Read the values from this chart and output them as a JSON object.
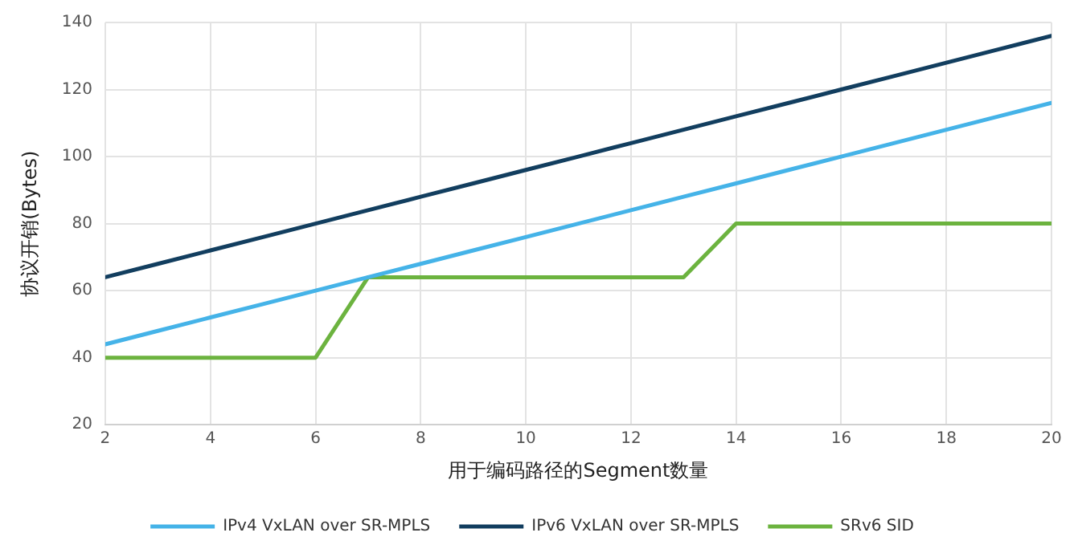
{
  "chart_data": {
    "type": "line",
    "xlabel": "用于编码路径的Segment数量",
    "ylabel": "协议开销(Bytes)",
    "x": [
      2,
      3,
      4,
      5,
      6,
      7,
      8,
      9,
      10,
      11,
      12,
      13,
      14,
      15,
      16,
      17,
      18,
      19,
      20
    ],
    "series": [
      {
        "name": "IPv4 VxLAN over SR-MPLS",
        "color": "#45b3e8",
        "values": [
          44,
          48,
          52,
          56,
          60,
          64,
          68,
          72,
          76,
          80,
          84,
          88,
          92,
          96,
          100,
          104,
          108,
          112,
          116
        ]
      },
      {
        "name": "IPv6 VxLAN over SR-MPLS",
        "color": "#123e5f",
        "values": [
          64,
          68,
          72,
          76,
          80,
          84,
          88,
          92,
          96,
          100,
          104,
          108,
          112,
          116,
          120,
          124,
          128,
          132,
          136
        ]
      },
      {
        "name": "SRv6 SID",
        "color": "#6cb33f",
        "values": [
          40,
          40,
          40,
          40,
          40,
          64,
          64,
          64,
          64,
          64,
          64,
          64,
          80,
          80,
          80,
          80,
          80,
          80,
          80
        ]
      }
    ],
    "xlim": [
      2,
      20
    ],
    "xticks": [
      2,
      4,
      6,
      8,
      10,
      12,
      14,
      16,
      18,
      20
    ],
    "ylim": [
      20,
      140
    ],
    "yticks": [
      20,
      40,
      60,
      80,
      100,
      120,
      140
    ],
    "grid": true,
    "legend": "bottom",
    "marker": "none",
    "line_style": "solid"
  }
}
